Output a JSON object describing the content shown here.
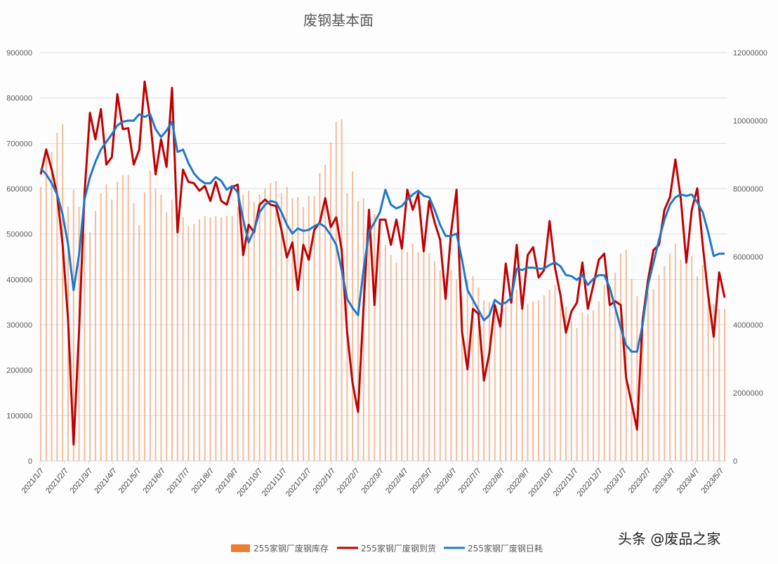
{
  "chart_data": {
    "type": "bar+line",
    "title": "废钢基本面",
    "x_ticks": [
      "2021/1/7",
      "2021/2/7",
      "2021/3/7",
      "2021/4/7",
      "2021/5/7",
      "2021/6/7",
      "2021/7/7",
      "2021/8/7",
      "2021/9/7",
      "2021/10/7",
      "2021/11/7",
      "2021/12/7",
      "2022/1/7",
      "2022/2/7",
      "2022/3/7",
      "2022/4/7",
      "2022/5/7",
      "2022/6/7",
      "2022/7/7",
      "2022/8/7",
      "2022/9/7",
      "2022/10/7",
      "2022/11/7",
      "2022/12/7",
      "2023/1/7",
      "2023/2/7",
      "2023/3/7",
      "2023/4/7",
      "2023/5/7"
    ],
    "y_left": {
      "min": 0,
      "max": 900000,
      "ticks": [
        "0",
        "100000",
        "200000",
        "300000",
        "400000",
        "500000",
        "600000",
        "700000",
        "800000",
        "900000"
      ]
    },
    "y_right": {
      "min": 0,
      "max": 12000000,
      "ticks": [
        "0",
        "2000000",
        "4000000",
        "6000000",
        "8000000",
        "10000000",
        "12000000"
      ]
    },
    "grid": true,
    "legend_position": "bottom",
    "series": [
      {
        "name": "255家钢厂废钢库存",
        "type": "bar",
        "axis": "left",
        "color": "#f2a57a",
        "values": [
          604000,
          690000,
          681000,
          723000,
          742000,
          560000,
          598000,
          560000,
          500000,
          504000,
          551000,
          590000,
          610000,
          576000,
          615000,
          630000,
          630000,
          568000,
          520000,
          592000,
          640000,
          601000,
          587000,
          548000,
          576000,
          504000,
          537000,
          518000,
          522000,
          532000,
          540000,
          537000,
          540000,
          537000,
          540000,
          540000,
          560000,
          587000,
          595000,
          570000,
          587000,
          601000,
          612000,
          617000,
          590000,
          604000,
          579000,
          581000,
          559000,
          584000,
          584000,
          634000,
          653000,
          702000,
          748000,
          753000,
          590000,
          638000,
          573000,
          579000,
          551000,
          545000,
          532000,
          476000,
          454000,
          437000,
          466000,
          461000,
          479000,
          460000,
          473000,
          458000,
          440000,
          420000,
          401000,
          421000,
          400000,
          363000,
          399000,
          407000,
          382000,
          354000,
          350000,
          349000,
          327000,
          346000,
          365000,
          377000,
          332000,
          346000,
          352000,
          354000,
          365000,
          377000,
          388000,
          365000,
          340000,
          310000,
          293000,
          327000,
          324000,
          332000,
          352000,
          388000,
          382000,
          415000,
          457000,
          465000,
          401000,
          363000,
          299000,
          371000,
          379000,
          410000,
          429000,
          457000,
          479000,
          443000,
          457000,
          451000,
          407000,
          432000,
          380000,
          346000,
          335000,
          335000
        ]
      },
      {
        "name": "255家钢厂废钢到货",
        "type": "line",
        "axis": "right",
        "color": "#c00000",
        "values": [
          8420000,
          9150000,
          8560000,
          7830000,
          6350000,
          4130000,
          480000,
          3770000,
          7830000,
          10230000,
          9450000,
          10340000,
          8710000,
          8930000,
          10780000,
          9750000,
          9780000,
          8710000,
          9150000,
          11150000,
          10040000,
          8420000,
          9450000,
          8640000,
          10960000,
          6720000,
          8560000,
          8200000,
          8160000,
          7940000,
          8080000,
          7640000,
          8200000,
          7640000,
          7530000,
          8050000,
          8120000,
          6050000,
          6940000,
          6720000,
          7530000,
          7680000,
          7530000,
          7490000,
          6790000,
          5980000,
          6420000,
          5020000,
          6350000,
          5910000,
          6790000,
          7010000,
          7720000,
          6870000,
          7160000,
          6200000,
          3770000,
          2290000,
          1440000,
          4500000,
          7380000,
          4580000,
          7090000,
          7090000,
          6350000,
          7090000,
          6240000,
          7970000,
          7380000,
          7860000,
          6160000,
          7640000,
          7010000,
          6500000,
          4760000,
          6720000,
          7970000,
          3800000,
          2690000,
          4470000,
          4320000,
          2360000,
          3170000,
          4580000,
          3950000,
          5800000,
          4650000,
          6350000,
          4470000,
          6050000,
          6280000,
          5390000,
          5610000,
          7050000,
          5680000,
          4870000,
          3770000,
          4390000,
          4650000,
          5830000,
          4470000,
          5170000,
          5910000,
          6090000,
          4580000,
          4690000,
          4580000,
          2440000,
          1700000,
          920000,
          4130000,
          5320000,
          6200000,
          6350000,
          7380000,
          7750000,
          8860000,
          7680000,
          5830000,
          7380000,
          8010000,
          6350000,
          4870000,
          3650000,
          5540000,
          4800000
        ]
      },
      {
        "name": "255家钢厂废钢日耗",
        "type": "line",
        "axis": "right",
        "color": "#1f78c8",
        "values": [
          8600000,
          8420000,
          8160000,
          7830000,
          7240000,
          6350000,
          5020000,
          6050000,
          7680000,
          8340000,
          8790000,
          9150000,
          9380000,
          9600000,
          9860000,
          9970000,
          10000000,
          10000000,
          10190000,
          10110000,
          10190000,
          9750000,
          9520000,
          9710000,
          9970000,
          9080000,
          9150000,
          8750000,
          8450000,
          8270000,
          8160000,
          8160000,
          8340000,
          8230000,
          7970000,
          8080000,
          7900000,
          7090000,
          6420000,
          6790000,
          7310000,
          7530000,
          7640000,
          7600000,
          7310000,
          6940000,
          6680000,
          6830000,
          6760000,
          6790000,
          6900000,
          6980000,
          6870000,
          6640000,
          6350000,
          5610000,
          4760000,
          4500000,
          4280000,
          5610000,
          6720000,
          7010000,
          7310000,
          7970000,
          7530000,
          7420000,
          7490000,
          7680000,
          7830000,
          7940000,
          7790000,
          7750000,
          7380000,
          6940000,
          6610000,
          6610000,
          6680000,
          5910000,
          5020000,
          4730000,
          4430000,
          4130000,
          4280000,
          4730000,
          4610000,
          4650000,
          4800000,
          5650000,
          5610000,
          5680000,
          5680000,
          5650000,
          5650000,
          5760000,
          5830000,
          5720000,
          5460000,
          5430000,
          5320000,
          5460000,
          5170000,
          5350000,
          5460000,
          5460000,
          5090000,
          4500000,
          3910000,
          3400000,
          3210000,
          3210000,
          3990000,
          5170000,
          5830000,
          6500000,
          7090000,
          7530000,
          7750000,
          7830000,
          7790000,
          7830000,
          7600000,
          7310000,
          6720000,
          6020000,
          6090000,
          6090000
        ]
      }
    ]
  },
  "watermark": "头条 @废品之家"
}
